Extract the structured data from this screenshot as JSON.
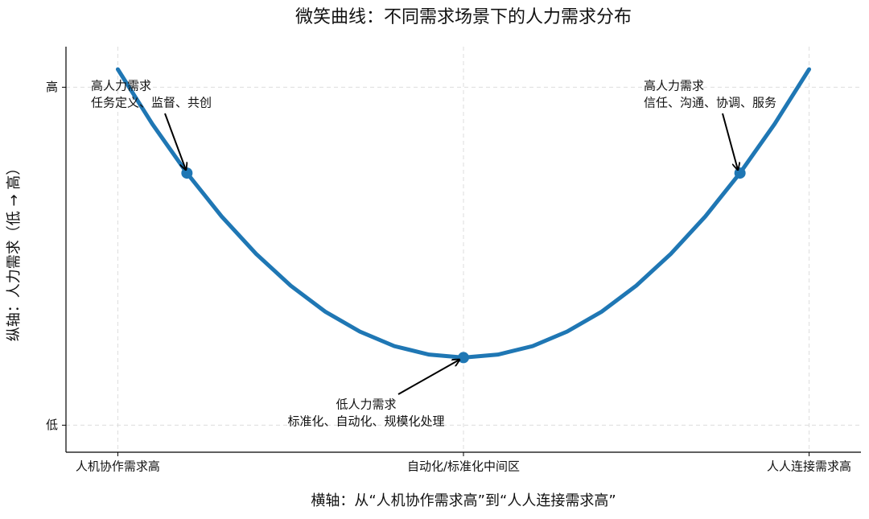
{
  "chart_data": {
    "type": "line",
    "title": "微笑曲线：不同需求场景下的人力需求分布",
    "x_label": "横轴：从“人机协作需求高”到“人人连接需求高”",
    "y_label": "纵轴：人力需求（低 → 高）",
    "x": [
      0,
      0.05,
      0.1,
      0.15,
      0.2,
      0.25,
      0.3,
      0.35,
      0.4,
      0.45,
      0.5,
      0.55,
      0.6,
      0.65,
      0.7,
      0.75,
      0.8,
      0.85,
      0.9,
      0.95,
      1
    ],
    "series": [
      {
        "name": "微笑曲线",
        "color": "#1f77b4",
        "values": [
          1.053,
          0.891,
          0.746,
          0.618,
          0.507,
          0.413,
          0.336,
          0.277,
          0.234,
          0.209,
          0.2,
          0.209,
          0.234,
          0.277,
          0.336,
          0.413,
          0.507,
          0.618,
          0.746,
          0.891,
          1.053
        ]
      }
    ],
    "points": {
      "x": [
        0.1,
        0.5,
        0.9
      ],
      "values": [
        0.746,
        0.2,
        0.746
      ],
      "color": "#1f77b4"
    },
    "annotations": [
      {
        "lines": [
          "高人力需求",
          "任务定义、监督、共创"
        ]
      },
      {
        "lines": [
          "低人力需求",
          "标准化、自动化、规模化处理"
        ]
      },
      {
        "lines": [
          "高人力需求",
          "信任、沟通、协调、服务"
        ]
      }
    ],
    "xlim": [
      -0.075,
      1.075
    ],
    "ylim": [
      -0.08,
      1.12
    ],
    "xticks": [
      {
        "value": 0,
        "label": "人机协作需求高"
      },
      {
        "value": 0.5,
        "label": "自动化/标准化中间区"
      },
      {
        "value": 1,
        "label": "人人连接需求高"
      }
    ],
    "yticks": [
      {
        "value": 0,
        "label": "低"
      },
      {
        "value": 1,
        "label": "高"
      }
    ],
    "grid": true
  }
}
